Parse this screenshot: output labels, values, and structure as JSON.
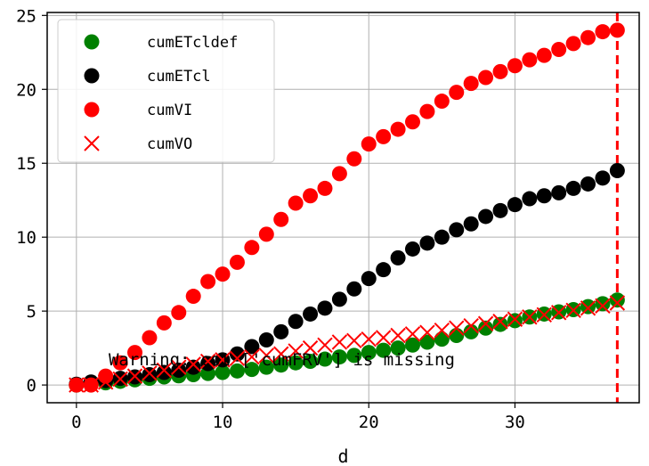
{
  "chart_data": {
    "type": "scatter",
    "title": "",
    "xlabel": "d",
    "ylabel": "",
    "xlim": [
      -2,
      38.5
    ],
    "ylim": [
      -1.2,
      25.2
    ],
    "xticks": [
      0,
      10,
      20,
      30
    ],
    "yticks": [
      0,
      5,
      10,
      15,
      20,
      25
    ],
    "grid": true,
    "legend_position": "top-left",
    "x": [
      0,
      1,
      2,
      3,
      4,
      5,
      6,
      7,
      8,
      9,
      10,
      11,
      12,
      13,
      14,
      15,
      16,
      17,
      18,
      19,
      20,
      21,
      22,
      23,
      24,
      25,
      26,
      27,
      28,
      29,
      30,
      31,
      32,
      33,
      34,
      35,
      36,
      37
    ],
    "series": [
      {
        "name": "cumETcldef",
        "marker": "circle",
        "color": "#008000",
        "values": [
          0.0,
          0.05,
          0.15,
          0.25,
          0.35,
          0.45,
          0.55,
          0.62,
          0.7,
          0.78,
          0.85,
          0.95,
          1.05,
          1.2,
          1.35,
          1.5,
          1.6,
          1.75,
          1.9,
          2.0,
          2.2,
          2.35,
          2.5,
          2.7,
          2.9,
          3.1,
          3.35,
          3.6,
          3.85,
          4.1,
          4.35,
          4.6,
          4.8,
          4.95,
          5.1,
          5.3,
          5.5,
          5.75
        ]
      },
      {
        "name": "cumETcl",
        "marker": "circle",
        "color": "#000000",
        "values": [
          0.05,
          0.2,
          0.3,
          0.45,
          0.55,
          0.7,
          0.85,
          1.0,
          1.2,
          1.45,
          1.7,
          2.1,
          2.6,
          3.05,
          3.6,
          4.3,
          4.8,
          5.2,
          5.8,
          6.5,
          7.2,
          7.8,
          8.6,
          9.2,
          9.6,
          10.0,
          10.5,
          10.9,
          11.4,
          11.8,
          12.2,
          12.6,
          12.8,
          13.0,
          13.3,
          13.6,
          14.0,
          14.5
        ]
      },
      {
        "name": "cumVI",
        "marker": "circle",
        "color": "#ff0000",
        "values": [
          0.0,
          0.0,
          0.6,
          1.5,
          2.2,
          3.2,
          4.2,
          4.9,
          6.0,
          7.0,
          7.5,
          8.3,
          9.3,
          10.2,
          11.2,
          12.3,
          12.8,
          13.3,
          14.3,
          15.3,
          16.3,
          16.8,
          17.3,
          17.8,
          18.5,
          19.2,
          19.8,
          20.4,
          20.8,
          21.2,
          21.6,
          22.0,
          22.3,
          22.7,
          23.1,
          23.5,
          23.9,
          24.0
        ]
      },
      {
        "name": "cumVO",
        "marker": "x",
        "color": "#ff0000",
        "values": [
          0.0,
          0.0,
          0.2,
          0.4,
          0.6,
          0.8,
          1.0,
          1.2,
          1.4,
          1.6,
          1.7,
          1.8,
          1.9,
          2.0,
          2.1,
          2.3,
          2.5,
          2.7,
          2.9,
          3.0,
          3.1,
          3.2,
          3.35,
          3.45,
          3.55,
          3.7,
          3.85,
          4.0,
          4.15,
          4.3,
          4.45,
          4.6,
          4.75,
          4.9,
          5.05,
          5.2,
          5.35,
          5.55
        ]
      }
    ],
    "vline": {
      "x": 37,
      "color": "#ff0000",
      "style": "dashed"
    },
    "annotation": {
      "text": "Warning: col ['cumFRV'] is missing",
      "x": 2.2,
      "y": 1.75
    }
  }
}
